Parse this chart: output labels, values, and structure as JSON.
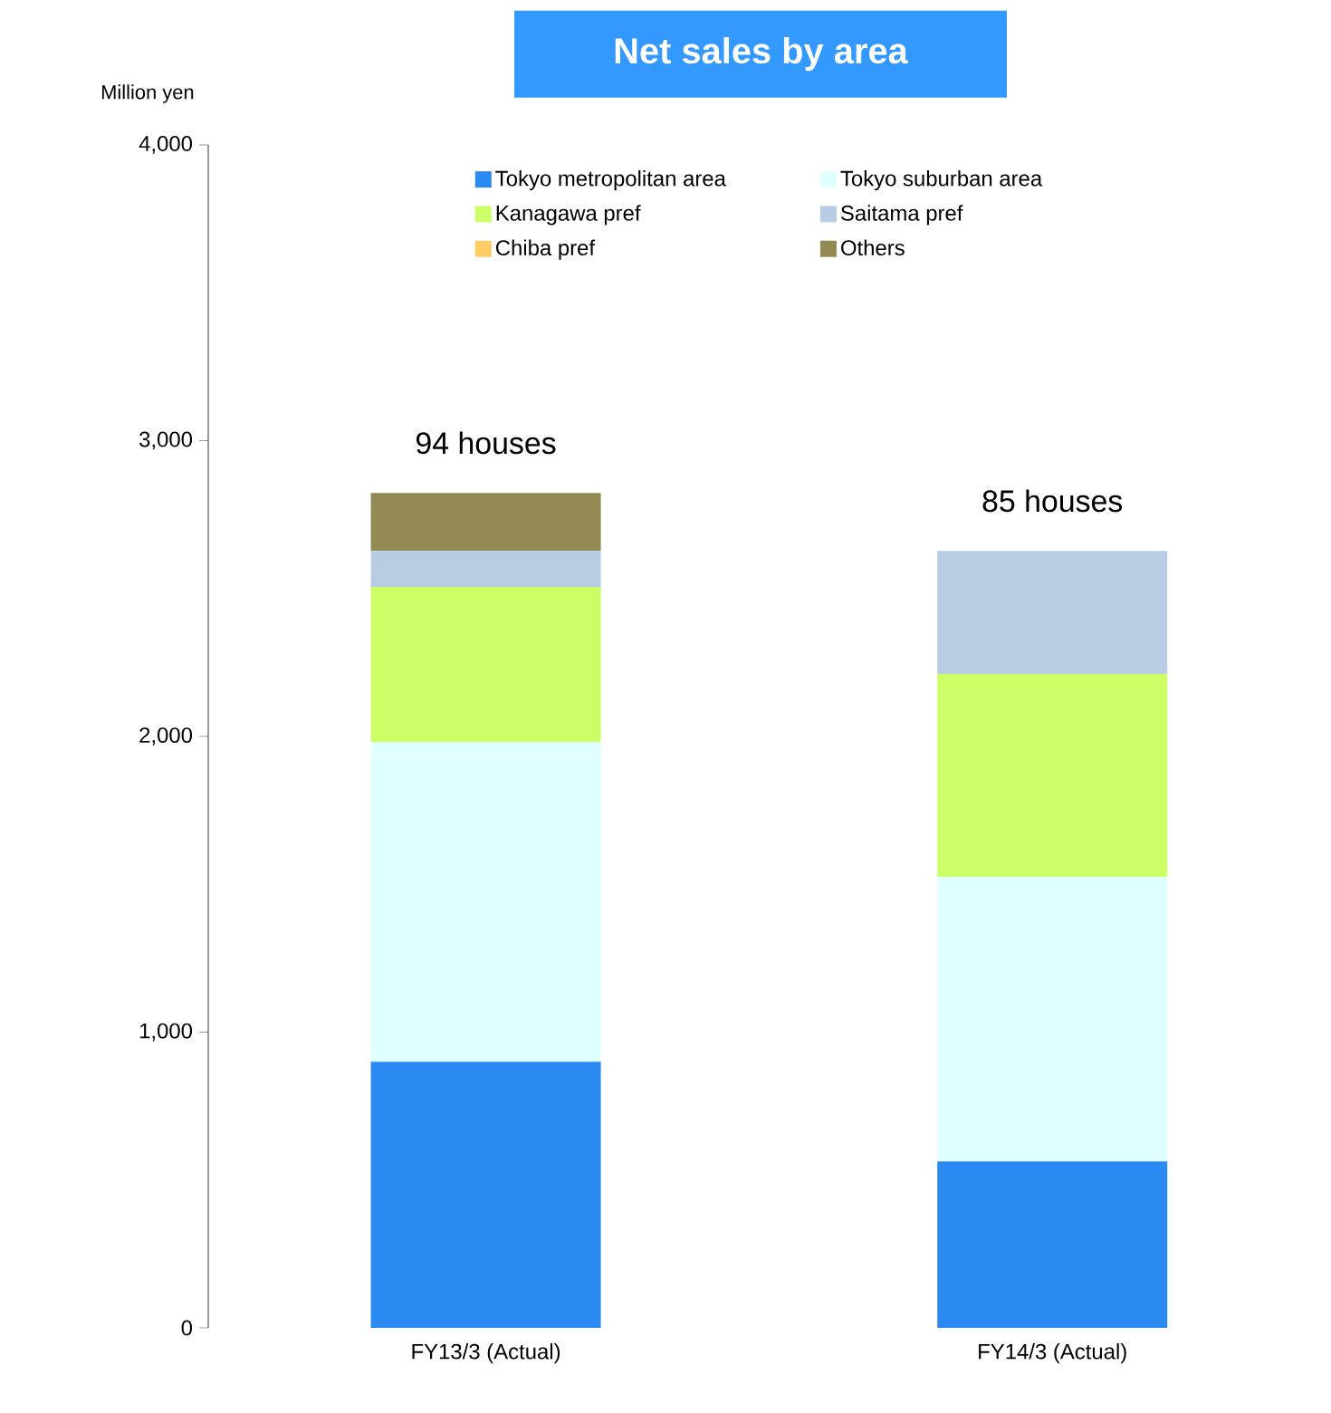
{
  "chart_data": {
    "type": "bar",
    "stacked": true,
    "title": "Net sales by area",
    "ylabel": "Million yen",
    "categories": [
      "FY13/3 (Actual)",
      "FY14/3 (Actual)"
    ],
    "series": [
      {
        "name": "Tokyo metropolitan area",
        "color": "#2b8af2",
        "values": [
          900,
          563
        ]
      },
      {
        "name": "Tokyo suburban area",
        "color": "#e0ffff",
        "values": [
          1080,
          962
        ]
      },
      {
        "name": "Kanagawa pref",
        "color": "#ccff66",
        "values": [
          525,
          686
        ]
      },
      {
        "name": "Saitama pref",
        "color": "#b8cce4",
        "values": [
          122,
          416
        ]
      },
      {
        "name": "Chiba pref",
        "color": "#ffcc66",
        "values": [
          0,
          0
        ]
      },
      {
        "name": "Others",
        "color": "#938953",
        "values": [
          196,
          null
        ]
      }
    ],
    "ylim": [
      0,
      4000
    ],
    "yticks": [
      0,
      {
        "value": 1000,
        "label": "1,000"
      },
      {
        "value": 2000,
        "label": "2,000"
      },
      {
        "value": 3000,
        "label": "3,000"
      },
      {
        "value": 4000,
        "label": "4,000"
      }
    ],
    "annotations": [
      "94 houses",
      "85 houses"
    ],
    "legend": "top",
    "grid": false
  }
}
